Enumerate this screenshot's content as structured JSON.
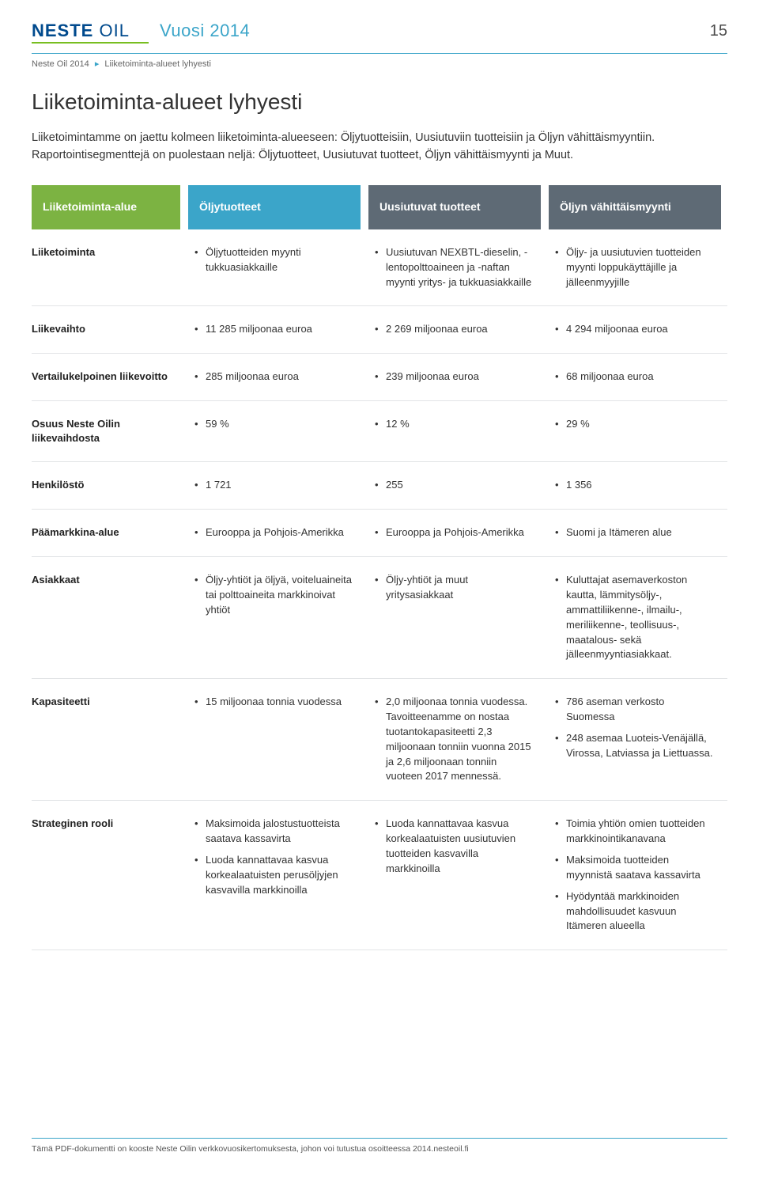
{
  "header": {
    "logo_text_a": "NESTE ",
    "logo_text_b": "OIL",
    "year_tag": "Vuosi 2014",
    "page_number": "15"
  },
  "breadcrumb": {
    "part1": "Neste Oil 2014",
    "part2": "Liiketoiminta-alueet lyhyesti"
  },
  "title": "Liiketoiminta-alueet lyhyesti",
  "intro": "Liiketoimintamme on jaettu kolmeen liiketoiminta-alueeseen: Öljytuotteisiin, Uusiutuviin tuotteisiin ja Öljyn vähittäismyyntiin. Raportointisegmenttejä on puolestaan neljä: Öljytuotteet, Uusiutuvat tuotteet, Öljyn vähittäismyynti ja Muut.",
  "table": {
    "colors": {
      "col_label_bg": "#7cb342",
      "col1_bg": "#3ba5c9",
      "col2_bg": "#5e6a75",
      "col3_bg": "#5e6a75",
      "rule_color": "#e2e4e6"
    },
    "headers": {
      "label": "Liiketoiminta-alue",
      "c1": "Öljytuotteet",
      "c2": "Uusiutuvat tuotteet",
      "c3": "Öljyn vähittäismyynti"
    },
    "rows": [
      {
        "label": "Liiketoiminta",
        "c1": [
          "Öljytuotteiden myynti tukkuasiakkaille"
        ],
        "c2": [
          "Uusiutuvan NEXBTL-dieselin, -lentopolttoaineen ja -naftan myynti yritys- ja tukkuasiakkaille"
        ],
        "c3": [
          "Öljy- ja uusiutuvien tuotteiden myynti loppukäyttäjille ja jälleenmyyjille"
        ]
      },
      {
        "label": "Liikevaihto",
        "c1": [
          "11 285 miljoonaa euroa"
        ],
        "c2": [
          "2 269 miljoonaa euroa"
        ],
        "c3": [
          "4 294 miljoonaa euroa"
        ]
      },
      {
        "label": "Vertailukelpoinen liikevoitto",
        "c1": [
          "285 miljoonaa euroa"
        ],
        "c2": [
          "239 miljoonaa euroa"
        ],
        "c3": [
          "68 miljoonaa euroa"
        ]
      },
      {
        "label": "Osuus Neste Oilin liikevaihdosta",
        "c1": [
          "59 %"
        ],
        "c2": [
          "12 %"
        ],
        "c3": [
          "29 %"
        ]
      },
      {
        "label": "Henkilöstö",
        "c1": [
          "1 721"
        ],
        "c2": [
          "255"
        ],
        "c3": [
          "1 356"
        ]
      },
      {
        "label": "Päämarkkina-alue",
        "c1": [
          "Eurooppa ja Pohjois-Amerikka"
        ],
        "c2": [
          "Eurooppa ja Pohjois-Amerikka"
        ],
        "c3": [
          "Suomi ja Itämeren alue"
        ]
      },
      {
        "label": "Asiakkaat",
        "c1": [
          "Öljy-yhtiöt ja öljyä, voiteluaineita tai polttoaineita markkinoivat yhtiöt"
        ],
        "c2": [
          "Öljy-yhtiöt ja muut yritysasiakkaat"
        ],
        "c3": [
          "Kuluttajat asemaverkoston kautta, lämmitysöljy-, ammattiliikenne-, ilmailu-, meriliikenne-, teollisuus-, maatalous- sekä jälleenmyyntiasiakkaat."
        ]
      },
      {
        "label": "Kapasiteetti",
        "c1": [
          "15 miljoonaa tonnia vuodessa"
        ],
        "c2": [
          "2,0 miljoonaa tonnia vuodessa. Tavoitteenamme on nostaa tuotantokapasiteetti 2,3 miljoonaan tonniin vuonna 2015 ja 2,6 miljoonaan tonniin vuoteen 2017 mennessä."
        ],
        "c3": [
          "786 aseman verkosto Suomessa",
          "248 asemaa Luoteis-Venäjällä, Virossa, Latviassa ja Liettuassa."
        ]
      },
      {
        "label": "Strateginen rooli",
        "c1": [
          "Maksimoida jalostustuotteista saatava kassavirta",
          "Luoda kannattavaa kasvua korkealaatuisten perusöljyjen kasvavilla markkinoilla"
        ],
        "c2": [
          "Luoda kannattavaa kasvua korkealaatuisten uusiutuvien tuotteiden kasvavilla markkinoilla"
        ],
        "c3": [
          "Toimia yhtiön omien tuotteiden markkinointikanavana",
          "Maksimoida tuotteiden myynnistä saatava kassavirta",
          "Hyödyntää markkinoiden mahdollisuudet kasvuun Itämeren alueella"
        ]
      }
    ]
  },
  "footer": "Tämä PDF-dokumentti on kooste Neste Oilin verkkovuosikertomuksesta, johon voi tutustua osoitteessa 2014.nesteoil.fi"
}
